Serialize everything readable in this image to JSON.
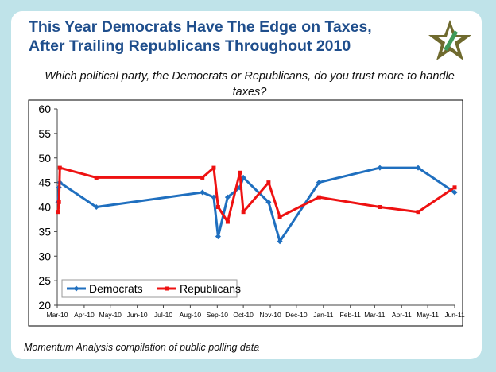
{
  "title": "This Year Democrats Have The Edge on Taxes, After Trailing Republicans Throughout 2010",
  "subtitle": "Which political party, the Democrats or Republicans, do you trust more to handle taxes?",
  "source": "Momentum Analysis compilation of public polling data",
  "logo_icon": "star-emblem-icon",
  "colors": {
    "democrats": "#1f6fbf",
    "republicans": "#ee1111",
    "title": "#1f4e8c",
    "background": "#bfe3e9"
  },
  "chart_data": {
    "type": "line",
    "title": "",
    "xlabel": "",
    "ylabel": "",
    "ylim": [
      20,
      60
    ],
    "yticks": [
      20,
      25,
      30,
      35,
      40,
      45,
      50,
      55,
      60
    ],
    "xlim": [
      "2010-03-01",
      "2011-06-01"
    ],
    "xticks": [
      {
        "date": "2010-03-01",
        "label": "Mar-10"
      },
      {
        "date": "2010-04-01",
        "label": "Apr-10"
      },
      {
        "date": "2010-05-01",
        "label": "May-10"
      },
      {
        "date": "2010-06-01",
        "label": "Jun-10"
      },
      {
        "date": "2010-07-01",
        "label": "Jul-10"
      },
      {
        "date": "2010-08-01",
        "label": "Aug-10"
      },
      {
        "date": "2010-09-01",
        "label": "Sep-10"
      },
      {
        "date": "2010-10-01",
        "label": "Oct-10"
      },
      {
        "date": "2010-11-01",
        "label": "Nov-10"
      },
      {
        "date": "2010-12-01",
        "label": "Dec-10"
      },
      {
        "date": "2011-01-01",
        "label": "Jan-11"
      },
      {
        "date": "2011-02-01",
        "label": "Feb-11"
      },
      {
        "date": "2011-03-01",
        "label": "Mar-11"
      },
      {
        "date": "2011-04-01",
        "label": "Apr-11"
      },
      {
        "date": "2011-05-01",
        "label": "May-11"
      },
      {
        "date": "2011-06-01",
        "label": "Jun-11"
      }
    ],
    "grid": false,
    "legend_position": "bottom-left",
    "series": [
      {
        "name": "Democrats",
        "color": "#1f6fbf",
        "points": [
          {
            "x": "2010-03-02",
            "y": 41
          },
          {
            "x": "2010-03-03",
            "y": 44
          },
          {
            "x": "2010-03-04",
            "y": 45
          },
          {
            "x": "2010-04-15",
            "y": 40
          },
          {
            "x": "2010-08-15",
            "y": 43
          },
          {
            "x": "2010-08-28",
            "y": 42
          },
          {
            "x": "2010-09-02",
            "y": 34
          },
          {
            "x": "2010-09-13",
            "y": 42
          },
          {
            "x": "2010-09-27",
            "y": 44
          },
          {
            "x": "2010-10-01",
            "y": 46
          },
          {
            "x": "2010-10-30",
            "y": 41
          },
          {
            "x": "2010-11-12",
            "y": 33
          },
          {
            "x": "2010-12-27",
            "y": 45
          },
          {
            "x": "2011-03-07",
            "y": 48
          },
          {
            "x": "2011-04-20",
            "y": 48
          },
          {
            "x": "2011-06-01",
            "y": 43
          }
        ]
      },
      {
        "name": "Republicans",
        "color": "#ee1111",
        "points": [
          {
            "x": "2010-03-02",
            "y": 39
          },
          {
            "x": "2010-03-03",
            "y": 41
          },
          {
            "x": "2010-03-04",
            "y": 48
          },
          {
            "x": "2010-04-15",
            "y": 46
          },
          {
            "x": "2010-08-15",
            "y": 46
          },
          {
            "x": "2010-08-28",
            "y": 48
          },
          {
            "x": "2010-09-02",
            "y": 40
          },
          {
            "x": "2010-09-13",
            "y": 37
          },
          {
            "x": "2010-09-27",
            "y": 47
          },
          {
            "x": "2010-10-01",
            "y": 39
          },
          {
            "x": "2010-10-30",
            "y": 45
          },
          {
            "x": "2010-11-12",
            "y": 38
          },
          {
            "x": "2010-12-27",
            "y": 42
          },
          {
            "x": "2011-03-07",
            "y": 40
          },
          {
            "x": "2011-04-20",
            "y": 39
          },
          {
            "x": "2011-06-01",
            "y": 44
          }
        ]
      }
    ]
  }
}
